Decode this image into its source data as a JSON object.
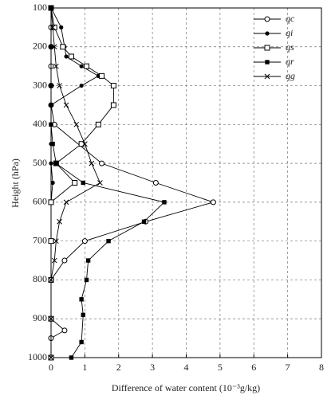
{
  "chart_data": {
    "type": "line",
    "x_label": "Difference of water content (10⁻³g/kg)",
    "y_label": "Height (hPa)",
    "xlim": [
      0,
      8
    ],
    "xticks": [
      0,
      1,
      2,
      3,
      4,
      5,
      6,
      7,
      8
    ],
    "ylim": [
      1000,
      100
    ],
    "yticks": [
      100,
      200,
      300,
      400,
      500,
      600,
      700,
      800,
      900,
      1000
    ],
    "grid": true,
    "legend": "upper right",
    "series": [
      {
        "name": "qc",
        "marker": "open-circle",
        "levels": [
          100,
          150,
          200,
          250,
          300,
          350,
          400,
          500,
          550,
          600,
          650,
          700,
          750,
          800,
          900,
          930,
          950,
          1000
        ],
        "values": [
          0,
          0,
          0,
          0,
          0,
          0,
          0.1,
          1.5,
          3.1,
          4.8,
          2.8,
          1.0,
          0.4,
          0,
          0,
          0.4,
          0,
          0
        ]
      },
      {
        "name": "qi",
        "marker": "filled-circle",
        "levels": [
          100,
          150,
          200,
          225,
          250,
          275,
          300,
          350,
          400,
          450,
          500,
          550,
          600,
          700,
          800,
          900,
          1000
        ],
        "values": [
          0,
          0.3,
          0.4,
          0.45,
          0.9,
          1.4,
          0.9,
          0,
          0,
          0,
          0,
          0.05,
          0,
          0,
          0,
          0,
          0
        ]
      },
      {
        "name": "qs",
        "marker": "open-square",
        "levels": [
          100,
          150,
          200,
          225,
          250,
          275,
          300,
          350,
          400,
          450,
          500,
          550,
          600,
          700,
          800,
          900,
          1000
        ],
        "values": [
          0,
          0.1,
          0.35,
          0.6,
          1.05,
          1.5,
          1.85,
          1.85,
          1.4,
          0.9,
          0.15,
          0.7,
          0,
          0,
          0,
          0,
          0
        ]
      },
      {
        "name": "qr",
        "marker": "filled-square",
        "levels": [
          100,
          200,
          300,
          400,
          450,
          500,
          550,
          600,
          650,
          700,
          750,
          800,
          850,
          890,
          960,
          1000
        ],
        "values": [
          0,
          0,
          0,
          0,
          0.05,
          0.15,
          0.95,
          3.35,
          2.75,
          1.7,
          1.1,
          1.05,
          0.9,
          0.95,
          0.9,
          0.6
        ]
      },
      {
        "name": "qg",
        "marker": "cross",
        "levels": [
          100,
          150,
          200,
          250,
          300,
          350,
          400,
          450,
          500,
          550,
          600,
          650,
          700,
          750,
          800,
          900,
          1000
        ],
        "values": [
          0,
          0.05,
          0.1,
          0.15,
          0.25,
          0.45,
          0.75,
          1.0,
          1.2,
          1.45,
          0.45,
          0.25,
          0.15,
          0.1,
          0,
          0,
          0
        ]
      }
    ]
  }
}
